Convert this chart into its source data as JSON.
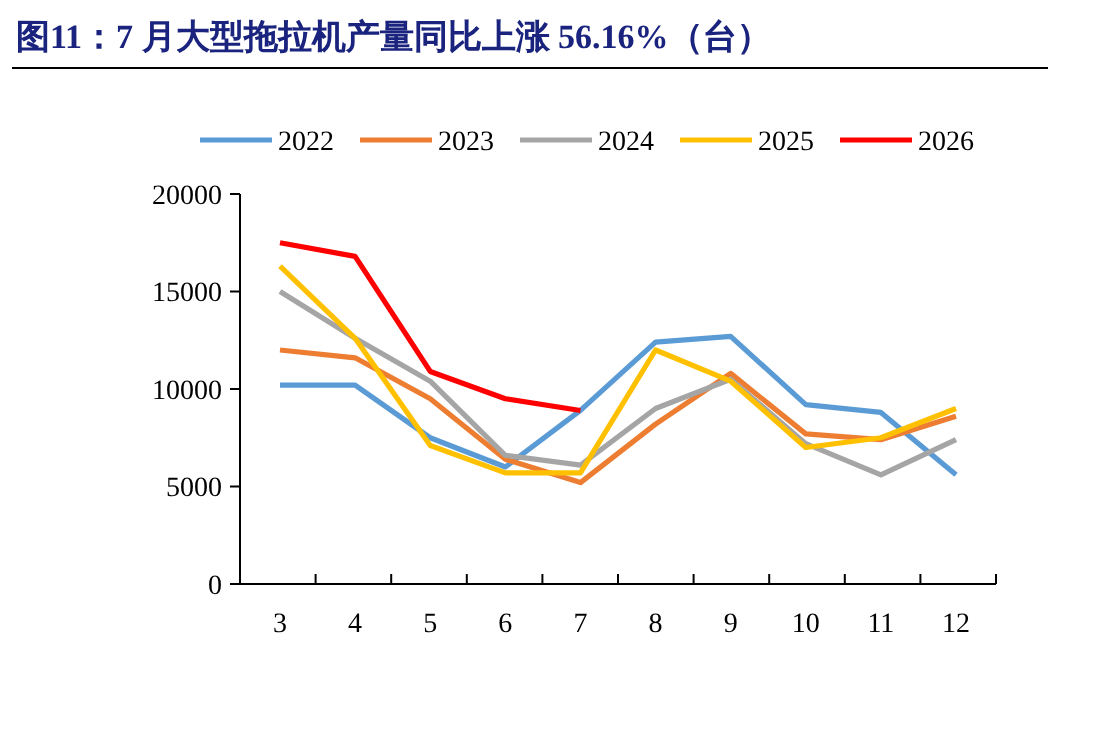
{
  "chart_data": {
    "type": "line",
    "title": "图11：7 月大型拖拉机产量同比上涨 56.16%（台）",
    "categories": [
      "3",
      "4",
      "5",
      "6",
      "7",
      "8",
      "9",
      "10",
      "11",
      "12"
    ],
    "series": [
      {
        "name": "2022",
        "color": "#5b9bd5",
        "values": [
          10200,
          10200,
          7500,
          6000,
          8900,
          12400,
          12700,
          9200,
          8800,
          5600
        ]
      },
      {
        "name": "2023",
        "color": "#ed7d31",
        "values": [
          12000,
          11600,
          9500,
          6400,
          5200,
          8200,
          10800,
          7700,
          7400,
          8600
        ]
      },
      {
        "name": "2024",
        "color": "#a5a5a5",
        "values": [
          15000,
          12600,
          10400,
          6600,
          6100,
          9000,
          10500,
          7200,
          5600,
          7400
        ]
      },
      {
        "name": "2025",
        "color": "#ffc000",
        "values": [
          16300,
          12600,
          7100,
          5700,
          5700,
          12000,
          10400,
          7000,
          7500,
          9000
        ]
      },
      {
        "name": "2026",
        "color": "#ff0000",
        "values": [
          17500,
          16800,
          10900,
          9500,
          8900,
          null,
          null,
          null,
          null,
          null
        ]
      }
    ],
    "ylim": [
      0,
      20000
    ],
    "yticks": [
      0,
      5000,
      10000,
      15000,
      20000
    ],
    "legend": "top",
    "marker": "none",
    "line_style": "solid"
  }
}
